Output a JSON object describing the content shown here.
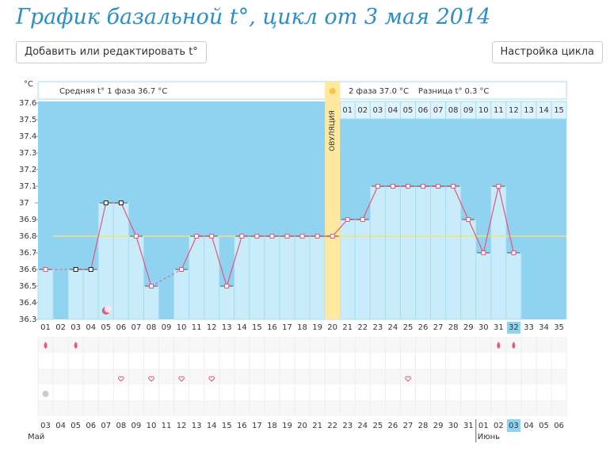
{
  "header": {
    "title": "График базальной t°, цикл от 3 мая 2014",
    "buttons": [
      "Добавить или редактировать t°",
      "Настройка цикла"
    ]
  },
  "summary": {
    "unit": "°C",
    "phase1_label": "Средняя t° 1 фаза",
    "phase1_mean": "36.7",
    "phase2_label": "2 фаза",
    "phase2_mean": "37.0",
    "difference_label": "Разница t°",
    "difference": "0.3"
  },
  "chart_data": {
    "type": "line",
    "y_label": "°C",
    "color": "#e8567c",
    "bar_color": "#c9ecfb",
    "background_color": "#8fd3f0",
    "categories": [
      "01",
      "02",
      "03",
      "04",
      "05",
      "06",
      "07",
      "08",
      "09",
      "10",
      "11",
      "12",
      "13",
      "14",
      "15",
      "16",
      "17",
      "18",
      "19",
      "20",
      "21",
      "22",
      "23",
      "24",
      "25",
      "26",
      "27",
      "28",
      "29",
      "30",
      "31",
      "32",
      "33",
      "34",
      "35"
    ],
    "values": [
      36.6,
      null,
      36.6,
      36.6,
      37.0,
      37.0,
      36.8,
      36.5,
      null,
      36.6,
      36.8,
      36.8,
      36.5,
      36.8,
      36.8,
      36.8,
      36.8,
      36.8,
      36.8,
      36.8,
      36.9,
      36.9,
      37.1,
      37.1,
      37.1,
      37.1,
      37.1,
      37.1,
      36.9,
      36.7,
      37.1,
      36.7,
      null,
      null,
      null
    ],
    "ylim": [
      36.3,
      37.6
    ],
    "yticks": [
      36.3,
      36.4,
      36.5,
      36.6,
      36.7,
      36.8,
      36.9,
      37,
      37.1,
      37.2,
      37.3,
      37.4,
      37.5,
      37.6
    ],
    "coverline": 36.8,
    "ovulation_label": "ОВУЛЯЦИЯ",
    "ovulation_index": 19,
    "today_index": 31,
    "phase2_start_index": 20,
    "phase2_days": [
      "01",
      "02",
      "03",
      "04",
      "05",
      "06",
      "07",
      "08",
      "09",
      "10",
      "11",
      "12",
      "13",
      "14",
      "15"
    ],
    "dates": [
      "03",
      "04",
      "05",
      "06",
      "07",
      "08",
      "09",
      "10",
      "11",
      "12",
      "13",
      "14",
      "15",
      "16",
      "17",
      "18",
      "19",
      "20",
      "21",
      "22",
      "23",
      "24",
      "25",
      "26",
      "27",
      "28",
      "29",
      "30",
      "31",
      "01",
      "02",
      "03",
      "04",
      "05",
      "06"
    ],
    "weekend_indices": [
      0,
      1,
      7,
      8,
      14,
      15,
      21,
      22,
      28,
      29
    ],
    "months": [
      {
        "label": "Май",
        "index": 0
      },
      {
        "label": "Июнь",
        "index": 29
      }
    ]
  }
}
